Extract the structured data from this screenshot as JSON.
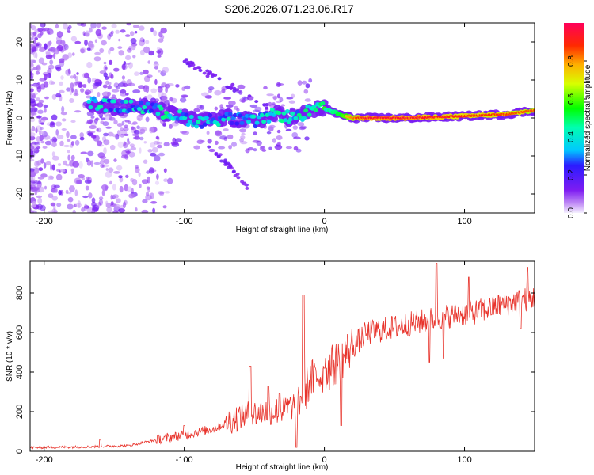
{
  "title": "S206.2026.071.23.06.R17",
  "chart_data": [
    {
      "type": "heatmap",
      "name": "spectrogram",
      "xlabel": "Height of straight line (km)",
      "ylabel": "Frequency (Hz)",
      "xlim": [
        -210,
        150
      ],
      "ylim": [
        -25,
        25
      ],
      "xticks": [
        -200,
        -100,
        0,
        100
      ],
      "yticks": [
        -20,
        -10,
        0,
        10,
        20
      ],
      "colorbar": {
        "label": "Normalized spectral amplitude",
        "range": [
          0,
          1
        ],
        "ticks": [
          0.0,
          0.2,
          0.4,
          0.6,
          0.8
        ],
        "tick_labels": [
          "0.0",
          "0.2",
          "0.4",
          "0.6",
          "0.8"
        ]
      },
      "ridge": [
        {
          "x": -210,
          "freq": 2.0
        },
        {
          "x": -165,
          "freq": 4.0
        },
        {
          "x": -150,
          "freq": 3.0
        },
        {
          "x": -130,
          "freq": 3.0
        },
        {
          "x": -110,
          "freq": 1.0
        },
        {
          "x": -90,
          "freq": -1.0
        },
        {
          "x": -70,
          "freq": 0.0
        },
        {
          "x": -50,
          "freq": -1.0
        },
        {
          "x": -35,
          "freq": 1.0
        },
        {
          "x": -20,
          "freq": 0.0
        },
        {
          "x": -10,
          "freq": 2.0
        },
        {
          "x": 0,
          "freq": 2.5
        },
        {
          "x": 10,
          "freq": 1.0
        },
        {
          "x": 20,
          "freq": 0.0
        },
        {
          "x": 60,
          "freq": 0.0
        },
        {
          "x": 100,
          "freq": 0.5
        },
        {
          "x": 130,
          "freq": 1.0
        },
        {
          "x": 150,
          "freq": 2.0
        }
      ],
      "ridge_amplitude": [
        {
          "x": -210,
          "amp": 0.15
        },
        {
          "x": -165,
          "amp": 0.3
        },
        {
          "x": -110,
          "amp": 0.32
        },
        {
          "x": -60,
          "amp": 0.28
        },
        {
          "x": -20,
          "amp": 0.35
        },
        {
          "x": 0,
          "amp": 0.5
        },
        {
          "x": 15,
          "amp": 0.75
        },
        {
          "x": 30,
          "amp": 0.95
        },
        {
          "x": 60,
          "amp": 0.95
        },
        {
          "x": 100,
          "amp": 0.9
        },
        {
          "x": 150,
          "amp": 0.85
        }
      ]
    },
    {
      "type": "line",
      "name": "snr",
      "xlabel": "Height of straight line (km)",
      "ylabel": "SNR (10 * v/v)",
      "xlim": [
        -210,
        150
      ],
      "ylim": [
        0,
        960
      ],
      "xticks": [
        -200,
        -100,
        0,
        100
      ],
      "yticks": [
        0,
        200,
        400,
        600,
        800
      ],
      "color": "#e8342c",
      "trend": [
        {
          "x": -210,
          "y": 18
        },
        {
          "x": -170,
          "y": 22
        },
        {
          "x": -140,
          "y": 28
        },
        {
          "x": -125,
          "y": 50
        },
        {
          "x": -100,
          "y": 80
        },
        {
          "x": -80,
          "y": 110
        },
        {
          "x": -60,
          "y": 170
        },
        {
          "x": -45,
          "y": 190
        },
        {
          "x": -30,
          "y": 200
        },
        {
          "x": -20,
          "y": 230
        },
        {
          "x": -10,
          "y": 340
        },
        {
          "x": 0,
          "y": 390
        },
        {
          "x": 10,
          "y": 440
        },
        {
          "x": 20,
          "y": 520
        },
        {
          "x": 30,
          "y": 590
        },
        {
          "x": 50,
          "y": 620
        },
        {
          "x": 70,
          "y": 650
        },
        {
          "x": 90,
          "y": 680
        },
        {
          "x": 110,
          "y": 700
        },
        {
          "x": 130,
          "y": 740
        },
        {
          "x": 150,
          "y": 770
        }
      ],
      "peaks": [
        {
          "x": -160,
          "y": 60
        },
        {
          "x": -100,
          "y": 130
        },
        {
          "x": -53,
          "y": 430
        },
        {
          "x": -40,
          "y": 330
        },
        {
          "x": -32,
          "y": 290
        },
        {
          "x": -15,
          "y": 790
        },
        {
          "x": 0,
          "y": 420
        },
        {
          "x": 80,
          "y": 950
        },
        {
          "x": 103,
          "y": 880
        },
        {
          "x": 145,
          "y": 930
        }
      ],
      "dips": [
        {
          "x": -20,
          "y": 20
        },
        {
          "x": 12,
          "y": 130
        },
        {
          "x": 75,
          "y": 450
        },
        {
          "x": 85,
          "y": 470
        },
        {
          "x": 140,
          "y": 620
        }
      ]
    }
  ]
}
